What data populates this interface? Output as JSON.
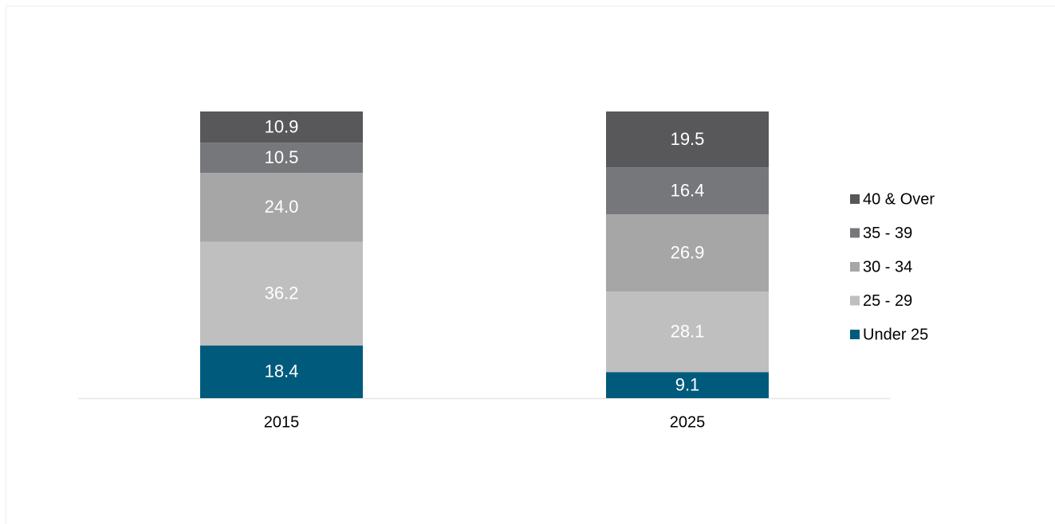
{
  "chart_data": {
    "type": "bar",
    "stacked": true,
    "categories": [
      "2015",
      "2025"
    ],
    "series": [
      {
        "name": "Under 25",
        "color": "#005a7c",
        "values": [
          18.4,
          9.1
        ]
      },
      {
        "name": "25 - 29",
        "color": "#bfbfbf",
        "values": [
          36.2,
          28.1
        ]
      },
      {
        "name": "30 - 34",
        "color": "#a6a6a6",
        "values": [
          24.0,
          26.9
        ],
        "value_labels": [
          "24.0",
          "26.9"
        ]
      },
      {
        "name": "35 - 39",
        "color": "#76777a",
        "values": [
          10.5,
          16.4
        ]
      },
      {
        "name": "40 & Over",
        "color": "#58585a",
        "values": [
          10.9,
          19.5
        ]
      }
    ],
    "legend": "right"
  }
}
